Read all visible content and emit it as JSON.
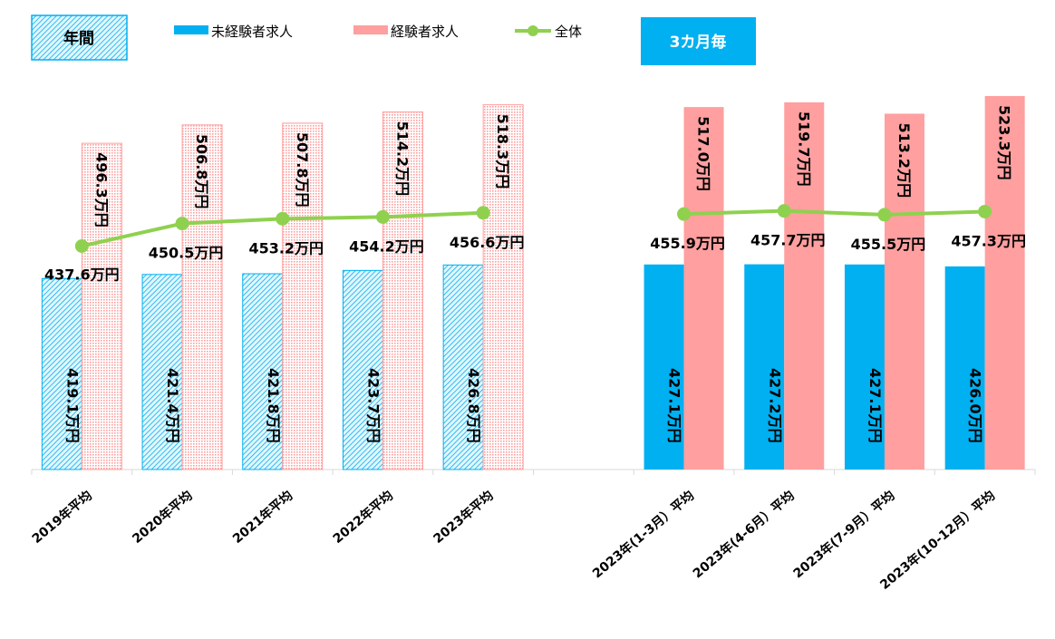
{
  "legend": {
    "annual_badge": "年間",
    "quarterly_badge": "3カ月毎",
    "items": [
      "未経験者求人",
      "経験者求人",
      "全体"
    ]
  },
  "colors": {
    "inexperienced": "#00b0f0",
    "experienced": "#ff9f9f",
    "overall": "#8fd14f"
  },
  "chart_data": {
    "type": "bar",
    "title": "",
    "xlabel": "",
    "ylabel": "",
    "ylim": [
      0,
      530
    ],
    "categories": [
      "2019年平均",
      "2020年平均",
      "2021年平均",
      "2022年平均",
      "2023年平均",
      "",
      "2023年(1-3月）平均",
      "2023年(4-6月）平均",
      "2023年(7-9月）平均",
      "2023年(10-12月）平均"
    ],
    "series": [
      {
        "name": "未経験者求人",
        "type": "bar",
        "values": [
          419.1,
          421.4,
          421.8,
          423.7,
          426.8,
          null,
          427.1,
          427.2,
          427.1,
          426.0
        ],
        "labels": [
          "419.1万円",
          "421.4万円",
          "421.8万円",
          "423.7万円",
          "426.8万円",
          null,
          "427.1万円",
          "427.2万円",
          "427.1万円",
          "426.0万円"
        ]
      },
      {
        "name": "経験者求人",
        "type": "bar",
        "values": [
          496.3,
          506.8,
          507.8,
          514.2,
          518.3,
          null,
          517.0,
          519.7,
          513.2,
          523.3
        ],
        "labels": [
          "496.3万円",
          "506.8万円",
          "507.8万円",
          "514.2万円",
          "518.3万円",
          null,
          "517.0万円",
          "519.7万円",
          "513.2万円",
          "523.3万円"
        ]
      },
      {
        "name": "全体",
        "type": "line",
        "values": [
          437.6,
          450.5,
          453.2,
          454.2,
          456.6,
          null,
          455.9,
          457.7,
          455.5,
          457.3
        ],
        "labels": [
          "437.6万円",
          "450.5万円",
          "453.2万円",
          "454.2万円",
          "456.6万円",
          null,
          "455.9万円",
          "457.7万円",
          "455.5万円",
          "457.3万円"
        ]
      }
    ]
  }
}
